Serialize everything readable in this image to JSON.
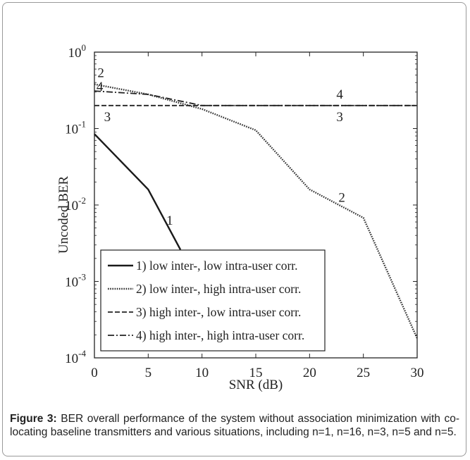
{
  "chart_data": {
    "type": "line",
    "xlabel": "SNR (dB)",
    "ylabel": "Uncoded BER",
    "xlim": [
      0,
      30
    ],
    "ylim": [
      0.0001,
      1
    ],
    "yscale": "log",
    "x_ticks": [
      "0",
      "5",
      "10",
      "15",
      "20",
      "25",
      "30"
    ],
    "y_ticks": [
      {
        "base": "10",
        "exp": "0"
      },
      {
        "base": "10",
        "exp": "-1"
      },
      {
        "base": "10",
        "exp": "-2"
      },
      {
        "base": "10",
        "exp": "-3"
      },
      {
        "base": "10",
        "exp": "-4"
      }
    ],
    "grid": false,
    "legend_position": "bottom-left",
    "series": [
      {
        "name": "1) low inter-, low intra-user corr.",
        "style": "solid",
        "curve_label": "1",
        "x": [
          0,
          5,
          8
        ],
        "y": [
          0.085,
          0.016,
          0.0026
        ]
      },
      {
        "name": "2) low inter-, high intra-user corr.",
        "style": "dotted",
        "curve_label": "2",
        "x": [
          0,
          5,
          10,
          15,
          20,
          25,
          30
        ],
        "y": [
          0.38,
          0.28,
          0.18,
          0.095,
          0.016,
          0.0068,
          0.00018
        ]
      },
      {
        "name": "3) high inter-, low intra-user corr.",
        "style": "dashed",
        "curve_label": "3",
        "x": [
          0,
          5,
          10,
          15,
          20,
          25,
          30
        ],
        "y": [
          0.2,
          0.2,
          0.2,
          0.2,
          0.2,
          0.2,
          0.2
        ]
      },
      {
        "name": "4) high inter-, high intra-user corr.",
        "style": "dashdot",
        "curve_label": "4",
        "x": [
          0,
          5,
          10,
          15,
          20,
          25,
          30
        ],
        "y": [
          0.31,
          0.28,
          0.2,
          0.2,
          0.2,
          0.2,
          0.2
        ]
      }
    ]
  },
  "caption": {
    "label": "Figure 3:",
    "text": "BER overall performance of the system without association minimization with co-locating baseline transmitters and various situations, including n=1, n=16, n=3, n=5 and n=5."
  }
}
